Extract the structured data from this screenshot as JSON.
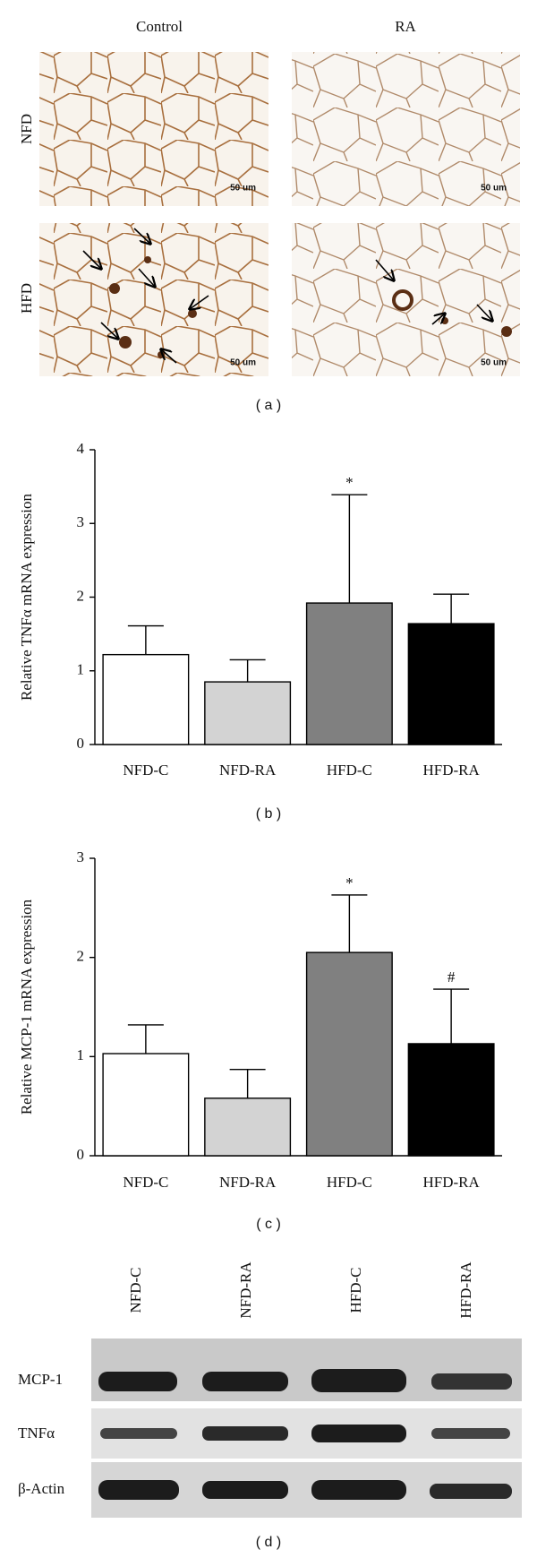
{
  "panel_a": {
    "column_labels": [
      "Control",
      "RA"
    ],
    "row_labels": [
      "NFD",
      "HFD"
    ],
    "scale_labels": [
      "50 um",
      "50 um",
      "50 um",
      "50 um"
    ],
    "panel_label": "( a )"
  },
  "chart_data": [
    {
      "type": "bar",
      "ylabel": "Relative TNFα mRNA expression",
      "categories": [
        "NFD-C",
        "NFD-RA",
        "HFD-C",
        "HFD-RA"
      ],
      "values": [
        1.22,
        0.85,
        1.92,
        1.64
      ],
      "errors": [
        0.39,
        0.3,
        1.47,
        0.4
      ],
      "colors": [
        "#ffffff",
        "#d3d3d3",
        "#808080",
        "#000000"
      ],
      "annotations": [
        null,
        null,
        "*",
        null
      ],
      "ylim": [
        0,
        4
      ],
      "yticks": [
        0,
        1,
        2,
        3,
        4
      ],
      "panel_label": "( b )"
    },
    {
      "type": "bar",
      "ylabel": "Relative MCP-1 mRNA expression",
      "categories": [
        "NFD-C",
        "NFD-RA",
        "HFD-C",
        "HFD-RA"
      ],
      "values": [
        1.03,
        0.58,
        2.05,
        1.13
      ],
      "errors": [
        0.29,
        0.29,
        0.58,
        0.55
      ],
      "colors": [
        "#ffffff",
        "#d3d3d3",
        "#808080",
        "#000000"
      ],
      "annotations": [
        null,
        null,
        "*",
        "#"
      ],
      "ylim": [
        0,
        3
      ],
      "yticks": [
        0,
        1,
        2,
        3
      ],
      "panel_label": "( c )"
    }
  ],
  "panel_d": {
    "column_labels": [
      "NFD-C",
      "NFD-RA",
      "HFD-C",
      "HFD-RA"
    ],
    "row_labels": [
      "MCP-1",
      "TNFα",
      "β-Actin"
    ],
    "panel_label": "( d )"
  }
}
